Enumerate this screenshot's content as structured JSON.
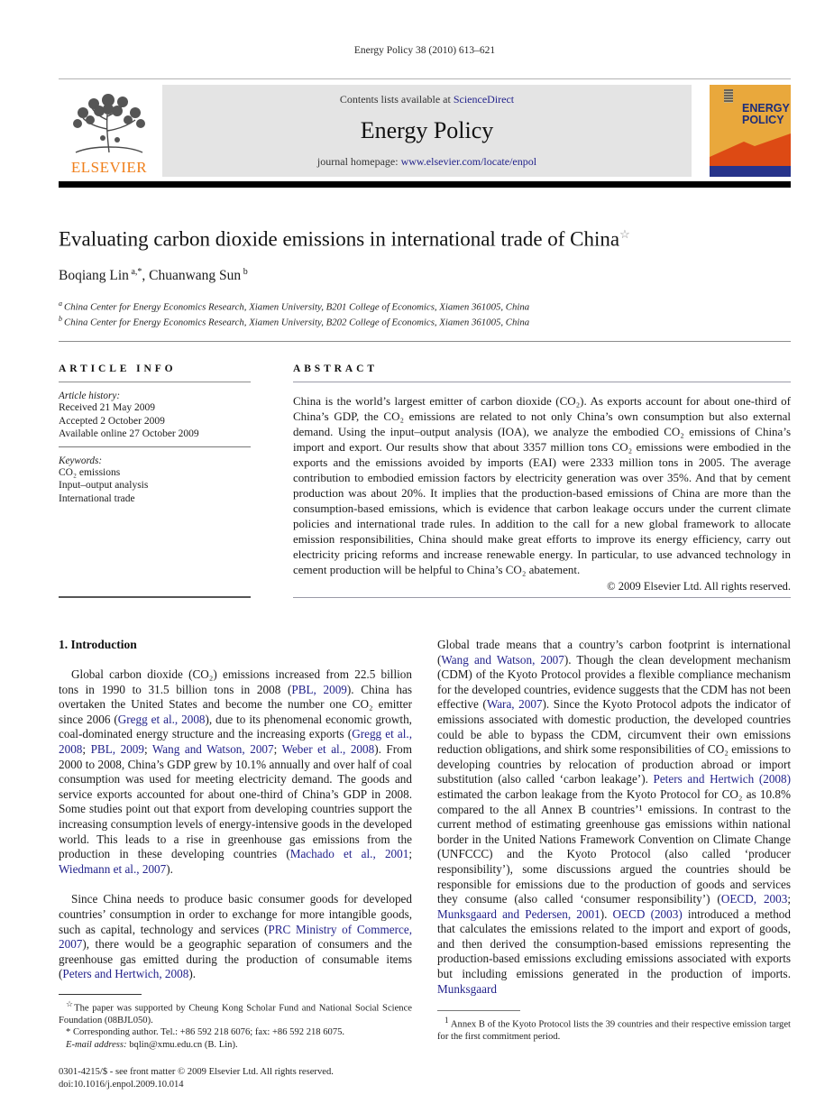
{
  "colors": {
    "link_navy": "#23238b",
    "elsevier_orange": "#f07f1a",
    "cover_yellow": "#e9a83c",
    "cover_red": "#dd4a14",
    "cover_blue": "#27348b"
  },
  "masthead": {
    "citation_line": "Energy Policy 38 (2010) 613–621",
    "contents_prefix": "Contents lists available at ",
    "sciencedirect_link": "ScienceDirect",
    "journal_title": "Energy Policy",
    "homepage_prefix": "journal homepage: ",
    "homepage_link": "www.elsevier.com/locate/enpol",
    "elsevier_wordmark": "ELSEVIER",
    "cover_title": "ENERGY POLICY"
  },
  "article": {
    "title": "Evaluating carbon dioxide emissions in international trade of China",
    "title_footnote_mark": "☆",
    "authors_rich": [
      {
        "t": "Boqiang Lin"
      },
      {
        "t": " a,*",
        "s": "sup"
      },
      {
        "t": ", Chuanwang Sun"
      },
      {
        "t": " b",
        "s": "sup"
      }
    ],
    "affiliations": [
      [
        {
          "t": "a ",
          "s": "sup"
        },
        {
          "t": "China Center for Energy Economics Research, Xiamen University, B201 College of Economics, Xiamen 361005, China"
        }
      ],
      [
        {
          "t": "b ",
          "s": "sup"
        },
        {
          "t": "China Center for Energy Economics Research, Xiamen University, B202 College of Economics, Xiamen 361005, China"
        }
      ]
    ]
  },
  "article_info": {
    "heading": "ARTICLE INFO",
    "history_label": "Article history:",
    "history": [
      "Received 21 May 2009",
      "Accepted 2 October 2009",
      "Available online 27 October 2009"
    ],
    "keywords_label": "Keywords:",
    "keywords": [
      "CO₂ emissions",
      "Input–output analysis",
      "International trade"
    ]
  },
  "abstract": {
    "heading": "ABSTRACT",
    "text": "China is the world’s largest emitter of carbon dioxide (CO₂). As exports account for about one-third of China’s GDP, the CO₂ emissions are related to not only China’s own consumption but also external demand. Using the input–output analysis (IOA), we analyze the embodied CO₂ emissions of China’s import and export. Our results show that about 3357 million tons CO₂ emissions were embodied in the exports and the emissions avoided by imports (EAI) were 2333 million tons in 2005. The average contribution to embodied emission factors by electricity generation was over 35%. And that by cement production was about 20%. It implies that the production-based emissions of China are more than the consumption-based emissions, which is evidence that carbon leakage occurs under the current climate policies and international trade rules. In addition to the call for a new global framework to allocate emission responsibilities, China should make great efforts to improve its energy efficiency, carry out electricity pricing reforms and increase renewable energy. In particular, to use advanced technology in cement production will be helpful to China’s CO₂ abatement.",
    "copyright": "© 2009 Elsevier Ltd. All rights reserved."
  },
  "introduction": {
    "heading": "1. Introduction",
    "left_p1": [
      {
        "t": "Global carbon dioxide (CO₂) emissions increased from 22.5 billion tons in 1990 to 31.5 billion tons in 2008 ("
      },
      {
        "t": "PBL, 2009",
        "s": "cite"
      },
      {
        "t": "). China has overtaken the United States and become the number one CO₂ emitter since 2006 ("
      },
      {
        "t": "Gregg et al., 2008",
        "s": "cite"
      },
      {
        "t": "), due to its phenomenal economic growth, coal-dominated energy structure and the increasing exports ("
      },
      {
        "t": "Gregg et al., 2008",
        "s": "cite"
      },
      {
        "t": "; "
      },
      {
        "t": "PBL, 2009",
        "s": "cite"
      },
      {
        "t": "; "
      },
      {
        "t": "Wang and Watson, 2007",
        "s": "cite"
      },
      {
        "t": "; "
      },
      {
        "t": "Weber et al., 2008",
        "s": "cite"
      },
      {
        "t": "). From 2000 to 2008, China’s GDP grew by 10.1% annually and over half of coal consumption was used for meeting electricity demand. The goods and service exports accounted for about one-third of China’s GDP in 2008. Some studies point out that export from developing countries support the increasing consumption levels of energy-intensive goods in the developed world. This leads to a rise in greenhouse gas emissions from the production in these developing countries ("
      },
      {
        "t": "Machado et al., 2001",
        "s": "cite"
      },
      {
        "t": "; "
      },
      {
        "t": "Wiedmann et al., 2007",
        "s": "cite"
      },
      {
        "t": ")."
      }
    ],
    "left_p2": [
      {
        "t": "Since China needs to produce basic consumer goods for developed countries’ consumption in order to exchange for more intangible goods, such as capital, technology and services ("
      },
      {
        "t": "PRC Ministry of Commerce, 2007",
        "s": "cite"
      },
      {
        "t": "), there would be a geographic separation of consumers and the greenhouse gas emitted during the production of consumable items ("
      },
      {
        "t": "Peters and Hertwich, 2008",
        "s": "cite"
      },
      {
        "t": ")."
      }
    ],
    "right_p1": [
      {
        "t": "Global trade means that a country’s carbon footprint is international ("
      },
      {
        "t": "Wang and Watson, 2007",
        "s": "cite"
      },
      {
        "t": "). Though the clean development mechanism (CDM) of the Kyoto Protocol provides a flexible compliance mechanism for the developed countries, evidence suggests that the CDM has not been effective ("
      },
      {
        "t": "Wara, 2007",
        "s": "cite"
      },
      {
        "t": "). Since the Kyoto Protocol adpots the indicator of emissions associated with domestic production, the developed countries could be able to bypass the CDM, circumvent their own emissions reduction obligations, and shirk some responsibilities of CO₂ emissions to developing countries by relocation of production abroad or import substitution (also called ‘carbon leakage’). "
      },
      {
        "t": "Peters and Hertwich (2008)",
        "s": "cite"
      },
      {
        "t": " estimated the carbon leakage from the Kyoto Protocol for CO₂ as 10.8% compared to the all Annex B countries’¹ emissions. In contrast to the current method of estimating greenhouse gas emissions within national border in the United Nations Framework Convention on Climate Change (UNFCCC) and the Kyoto Protocol (also called ‘producer responsibility’), some discussions argued the countries should be responsible for emissions due to the production of goods and services they consume (also called ‘consumer responsibility’) ("
      },
      {
        "t": "OECD, 2003",
        "s": "cite"
      },
      {
        "t": "; "
      },
      {
        "t": "Munksgaard and Pedersen, 2001",
        "s": "cite"
      },
      {
        "t": "). "
      },
      {
        "t": "OECD (2003)",
        "s": "cite"
      },
      {
        "t": " introduced a method that calculates the emissions related to the import and export of goods, and then derived the consumption-based emissions representing the production-based emissions excluding emissions associated with exports but including emissions generated in the production of imports. "
      },
      {
        "t": "Munksgaard",
        "s": "cite"
      }
    ]
  },
  "footnotes": {
    "star_note": [
      {
        "t": "☆",
        "s": "sup"
      },
      {
        "t": "The paper was supported by Cheung Kong Scholar Fund and National Social Science Foundation (08BJL050)."
      }
    ],
    "corresponding_note": [
      {
        "t": "* Corresponding author. Tel.: +86 592 218 6076; fax: +86 592 218 6075."
      }
    ],
    "email_note": [
      {
        "t": "E-mail address: ",
        "s": "i"
      },
      {
        "t": "bqlin@xmu.edu.cn (B. Lin)."
      }
    ],
    "issn_line": "0301-4215/$ - see front matter © 2009 Elsevier Ltd. All rights reserved.",
    "doi_line": "doi:10.1016/j.enpol.2009.10.014",
    "annex_note": [
      {
        "t": "1 ",
        "s": "sup"
      },
      {
        "t": "Annex B of the Kyoto Protocol lists the 39 countries and their respective emission target for the first commitment period."
      }
    ]
  }
}
